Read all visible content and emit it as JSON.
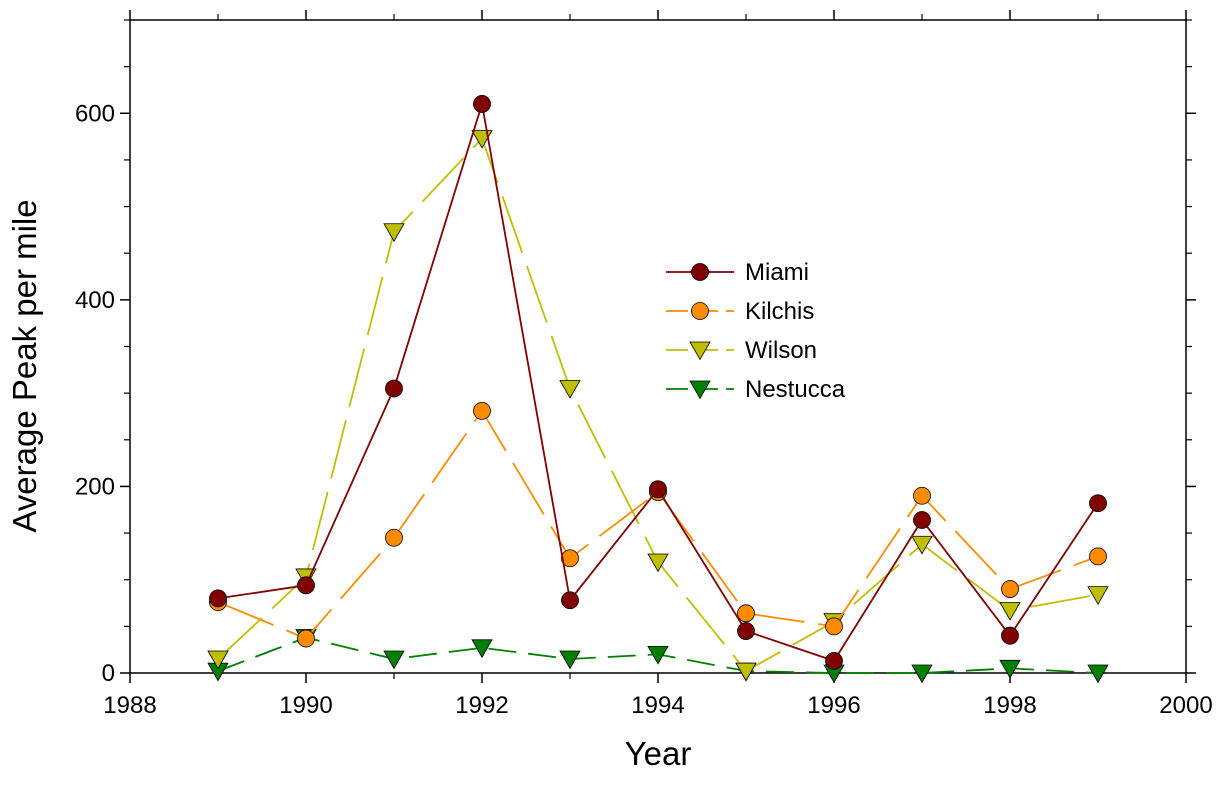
{
  "chart_data": {
    "type": "line",
    "title": "",
    "xlabel": "Year",
    "ylabel": "Average Peak per mile",
    "xlim": [
      1988,
      2000
    ],
    "ylim": [
      0,
      700
    ],
    "xticks": [
      "1988",
      "1990",
      "1992",
      "1994",
      "1996",
      "1998",
      "2000"
    ],
    "yticks": [
      "0",
      "200",
      "400",
      "600"
    ],
    "grid": false,
    "legend_position": "center-right",
    "x": [
      1989,
      1990,
      1991,
      1992,
      1993,
      1994,
      1995,
      1996,
      1997,
      1998,
      1999
    ],
    "series": [
      {
        "name": "Miami",
        "marker": "circle",
        "line": "solid",
        "color": "#800000",
        "values": [
          80,
          94,
          305,
          610,
          78,
          197,
          45,
          13,
          164,
          40,
          182
        ]
      },
      {
        "name": "Kilchis",
        "marker": "circle",
        "line": "long-dash",
        "color": "#ff8c00",
        "values": [
          76,
          37,
          145,
          281,
          123,
          194,
          64,
          50,
          190,
          90,
          125
        ]
      },
      {
        "name": "Wilson",
        "marker": "triangle-down",
        "line": "long-dash",
        "color": "#bfbf00",
        "values": [
          15,
          103,
          473,
          573,
          305,
          119,
          2,
          55,
          138,
          67,
          84
        ]
      },
      {
        "name": "Nestucca",
        "marker": "triangle-down",
        "line": "dash",
        "color": "#008000",
        "values": [
          2,
          38,
          15,
          27,
          15,
          20,
          2,
          0,
          0,
          5,
          0
        ]
      }
    ]
  }
}
